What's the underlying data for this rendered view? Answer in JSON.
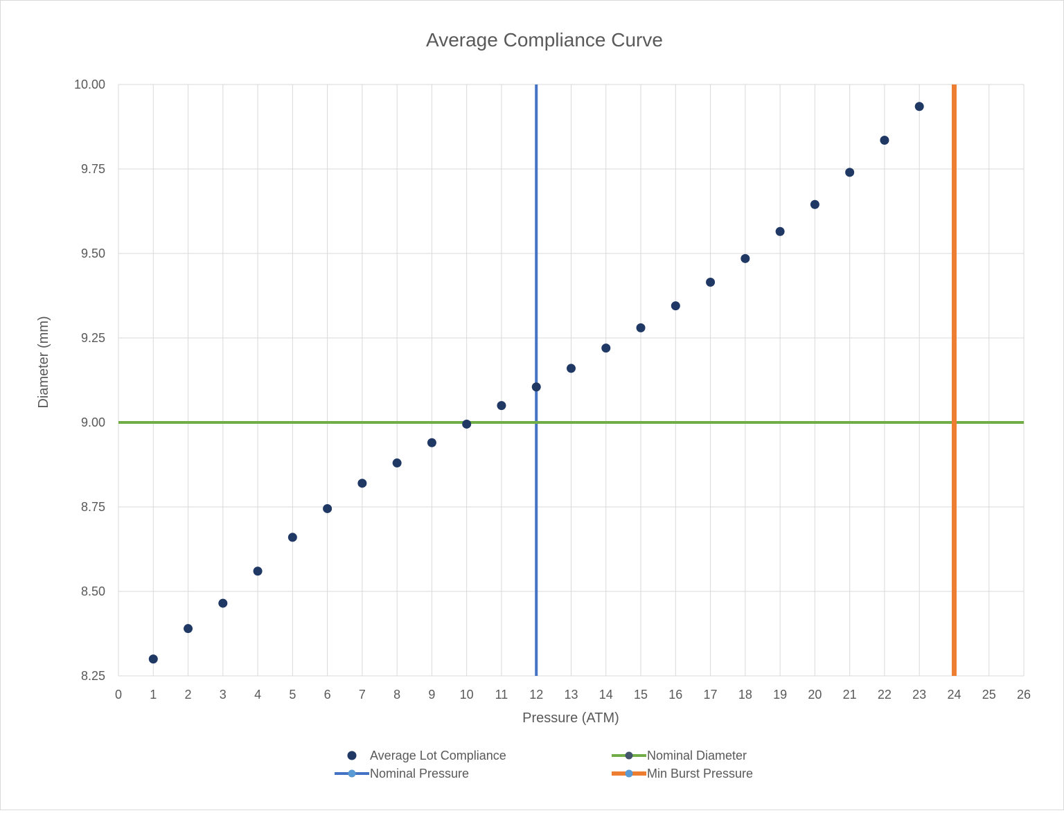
{
  "chart_data": {
    "type": "scatter",
    "title": "Average Compliance Curve",
    "xlabel": "Pressure (ATM)",
    "ylabel": "Diameter (mm)",
    "xlim": [
      0,
      26
    ],
    "ylim": [
      8.25,
      10.0
    ],
    "x_ticks": [
      "0",
      "1",
      "2",
      "3",
      "4",
      "5",
      "6",
      "7",
      "8",
      "9",
      "10",
      "11",
      "12",
      "13",
      "14",
      "15",
      "16",
      "17",
      "18",
      "19",
      "20",
      "21",
      "22",
      "23",
      "24",
      "25",
      "26"
    ],
    "y_ticks": [
      "8.25",
      "8.50",
      "8.75",
      "9.00",
      "9.25",
      "9.50",
      "9.75",
      "10.00"
    ],
    "grid": true,
    "legend_position": "bottom",
    "series": [
      {
        "name": "Average Lot Compliance",
        "kind": "points",
        "color": "#1f3864",
        "x": [
          1,
          2,
          3,
          4,
          5,
          6,
          7,
          8,
          9,
          10,
          11,
          12,
          13,
          14,
          15,
          16,
          17,
          18,
          19,
          20,
          21,
          22,
          23
        ],
        "y": [
          8.3,
          8.39,
          8.465,
          8.56,
          8.66,
          8.745,
          8.82,
          8.88,
          8.94,
          8.995,
          9.05,
          9.105,
          9.16,
          9.22,
          9.28,
          9.345,
          9.415,
          9.485,
          9.565,
          9.645,
          9.74,
          9.835,
          9.935
        ]
      },
      {
        "name": "Nominal Pressure",
        "kind": "vline",
        "color": "#4472c4",
        "x": 12
      },
      {
        "name": "Nominal Diameter",
        "kind": "hline",
        "color": "#70ad47",
        "y": 9.0
      },
      {
        "name": "Min Burst Pressure",
        "kind": "vline",
        "color": "#ed7d31",
        "x": 24
      }
    ]
  }
}
